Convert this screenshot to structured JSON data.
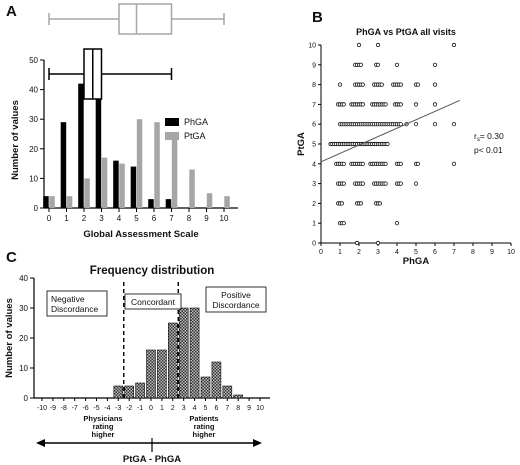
{
  "chart_data": [
    {
      "panel": "A",
      "type": "bar",
      "xlabel": "Global Assessment Scale",
      "ylabel": "Number of values",
      "categories": [
        "0",
        "1",
        "2",
        "3",
        "4",
        "5",
        "6",
        "7",
        "8",
        "9",
        "10"
      ],
      "ylim": [
        0,
        50
      ],
      "yticks": [
        0,
        10,
        20,
        30,
        40,
        50
      ],
      "legend": "right",
      "series": [
        {
          "name": "PhGA",
          "color": "#000000",
          "values": [
            4,
            29,
            42,
            43,
            16,
            14,
            3,
            3,
            0,
            0,
            0
          ]
        },
        {
          "name": "PtGA",
          "color": "#a6a6a6",
          "values": [
            4,
            4,
            10,
            17,
            15,
            30,
            29,
            23,
            13,
            5,
            4
          ]
        }
      ],
      "boxplots": [
        {
          "series": "PtGA",
          "color": "#a6a6a6",
          "min": 0,
          "q1": 4,
          "median": 5,
          "q3": 7,
          "max": 10
        },
        {
          "series": "PhGA",
          "color": "#000000",
          "min": 0,
          "q1": 2,
          "median": 2.5,
          "q3": 3,
          "max": 7
        }
      ]
    },
    {
      "panel": "B",
      "type": "scatter",
      "title": "PhGA vs PtGA all visits",
      "xlabel": "PhGA",
      "ylabel": "PtGA",
      "xlim": [
        0,
        10
      ],
      "ylim": [
        0,
        10
      ],
      "xticks": [
        0,
        1,
        2,
        3,
        4,
        5,
        6,
        7,
        8,
        9,
        10
      ],
      "yticks": [
        0,
        1,
        2,
        3,
        4,
        5,
        6,
        7,
        8,
        9,
        10
      ],
      "regression": {
        "x": [
          0,
          7.3
        ],
        "y": [
          4.1,
          7.2
        ]
      },
      "stats": {
        "rs_label": "r",
        "rs_sub": "s",
        "rs_value": "= 0.30",
        "p": "p< 0.01"
      },
      "points": [
        [
          0.5,
          5
        ],
        [
          0.6,
          5
        ],
        [
          0.7,
          5
        ],
        [
          0.8,
          5
        ],
        [
          0.9,
          5
        ],
        [
          1.0,
          5
        ],
        [
          1.1,
          5
        ],
        [
          1.2,
          5
        ],
        [
          1.3,
          5
        ],
        [
          1.4,
          5
        ],
        [
          1.5,
          5
        ],
        [
          1.6,
          5
        ],
        [
          1.7,
          5
        ],
        [
          1.8,
          5
        ],
        [
          1.9,
          5
        ],
        [
          2.0,
          5
        ],
        [
          2.1,
          5
        ],
        [
          2.2,
          5
        ],
        [
          2.3,
          5
        ],
        [
          2.4,
          5
        ],
        [
          2.5,
          5
        ],
        [
          2.6,
          5
        ],
        [
          2.7,
          5
        ],
        [
          2.8,
          5
        ],
        [
          2.9,
          5
        ],
        [
          3.0,
          5
        ],
        [
          3.1,
          5
        ],
        [
          3.2,
          5
        ],
        [
          3.3,
          5
        ],
        [
          3.4,
          5
        ],
        [
          3.5,
          5
        ],
        [
          1.0,
          6
        ],
        [
          1.1,
          6
        ],
        [
          1.2,
          6
        ],
        [
          1.3,
          6
        ],
        [
          1.4,
          6
        ],
        [
          1.5,
          6
        ],
        [
          1.6,
          6
        ],
        [
          1.7,
          6
        ],
        [
          1.8,
          6
        ],
        [
          1.9,
          6
        ],
        [
          2.0,
          6
        ],
        [
          2.1,
          6
        ],
        [
          2.2,
          6
        ],
        [
          2.3,
          6
        ],
        [
          2.4,
          6
        ],
        [
          2.5,
          6
        ],
        [
          2.6,
          6
        ],
        [
          2.7,
          6
        ],
        [
          2.8,
          6
        ],
        [
          2.9,
          6
        ],
        [
          3.0,
          6
        ],
        [
          3.1,
          6
        ],
        [
          3.2,
          6
        ],
        [
          3.3,
          6
        ],
        [
          3.4,
          6
        ],
        [
          3.5,
          6
        ],
        [
          3.6,
          6
        ],
        [
          3.7,
          6
        ],
        [
          3.8,
          6
        ],
        [
          3.9,
          6
        ],
        [
          4.0,
          6
        ],
        [
          4.1,
          6
        ],
        [
          4.2,
          6
        ],
        [
          4.5,
          6
        ],
        [
          5.0,
          6
        ],
        [
          6.0,
          6
        ],
        [
          7.0,
          6
        ],
        [
          0.8,
          4
        ],
        [
          0.9,
          4
        ],
        [
          1.0,
          4
        ],
        [
          1.1,
          4
        ],
        [
          1.2,
          4
        ],
        [
          1.6,
          4
        ],
        [
          1.7,
          4
        ],
        [
          1.8,
          4
        ],
        [
          1.9,
          4
        ],
        [
          2.0,
          4
        ],
        [
          2.1,
          4
        ],
        [
          2.2,
          4
        ],
        [
          2.6,
          4
        ],
        [
          2.7,
          4
        ],
        [
          2.8,
          4
        ],
        [
          2.9,
          4
        ],
        [
          3.0,
          4
        ],
        [
          3.1,
          4
        ],
        [
          3.2,
          4
        ],
        [
          3.3,
          4
        ],
        [
          3.4,
          4
        ],
        [
          4.0,
          4
        ],
        [
          4.1,
          4
        ],
        [
          4.2,
          4
        ],
        [
          5.0,
          4
        ],
        [
          5.1,
          4
        ],
        [
          7.0,
          4
        ],
        [
          0.9,
          7
        ],
        [
          1.0,
          7
        ],
        [
          1.1,
          7
        ],
        [
          1.2,
          7
        ],
        [
          1.6,
          7
        ],
        [
          1.7,
          7
        ],
        [
          1.8,
          7
        ],
        [
          1.9,
          7
        ],
        [
          2.0,
          7
        ],
        [
          2.1,
          7
        ],
        [
          2.2,
          7
        ],
        [
          2.7,
          7
        ],
        [
          2.8,
          7
        ],
        [
          2.9,
          7
        ],
        [
          3.0,
          7
        ],
        [
          3.1,
          7
        ],
        [
          3.2,
          7
        ],
        [
          3.3,
          7
        ],
        [
          3.4,
          7
        ],
        [
          3.9,
          7
        ],
        [
          4.0,
          7
        ],
        [
          4.1,
          7
        ],
        [
          4.2,
          7
        ],
        [
          5.0,
          7
        ],
        [
          6.0,
          7
        ],
        [
          0.9,
          3
        ],
        [
          1.0,
          3
        ],
        [
          1.1,
          3
        ],
        [
          1.2,
          3
        ],
        [
          1.8,
          3
        ],
        [
          1.9,
          3
        ],
        [
          2.0,
          3
        ],
        [
          2.1,
          3
        ],
        [
          2.2,
          3
        ],
        [
          2.8,
          3
        ],
        [
          2.9,
          3
        ],
        [
          3.0,
          3
        ],
        [
          3.1,
          3
        ],
        [
          3.2,
          3
        ],
        [
          3.3,
          3
        ],
        [
          3.4,
          3
        ],
        [
          4.0,
          3
        ],
        [
          4.1,
          3
        ],
        [
          4.2,
          3
        ],
        [
          5.0,
          3
        ],
        [
          1.0,
          8
        ],
        [
          1.8,
          8
        ],
        [
          1.9,
          8
        ],
        [
          2.0,
          8
        ],
        [
          2.1,
          8
        ],
        [
          2.2,
          8
        ],
        [
          2.8,
          8
        ],
        [
          2.9,
          8
        ],
        [
          3.0,
          8
        ],
        [
          3.1,
          8
        ],
        [
          3.2,
          8
        ],
        [
          3.8,
          8
        ],
        [
          3.9,
          8
        ],
        [
          4.0,
          8
        ],
        [
          4.1,
          8
        ],
        [
          4.2,
          8
        ],
        [
          5.0,
          8
        ],
        [
          5.1,
          8
        ],
        [
          6.0,
          8
        ],
        [
          0.9,
          2
        ],
        [
          1.0,
          2
        ],
        [
          1.1,
          2
        ],
        [
          1.9,
          2
        ],
        [
          2.0,
          2
        ],
        [
          2.1,
          2
        ],
        [
          2.9,
          2
        ],
        [
          3.0,
          2
        ],
        [
          3.1,
          2
        ],
        [
          1.8,
          9
        ],
        [
          1.9,
          9
        ],
        [
          2.0,
          9
        ],
        [
          2.1,
          9
        ],
        [
          2.9,
          9
        ],
        [
          3.0,
          9
        ],
        [
          4.0,
          9
        ],
        [
          6.0,
          9
        ],
        [
          1.0,
          1
        ],
        [
          1.1,
          1
        ],
        [
          1.2,
          1
        ],
        [
          4.0,
          1
        ],
        [
          2.0,
          10
        ],
        [
          3.0,
          10
        ],
        [
          7.0,
          10
        ],
        [
          1.9,
          0
        ],
        [
          3.0,
          0
        ]
      ]
    },
    {
      "panel": "C",
      "type": "bar",
      "title": "Frequency distribution",
      "xlabel": "PtGA - PhGA",
      "ylabel": "Number of values",
      "categories": [
        "-10",
        "-9",
        "-8",
        "-7",
        "-6",
        "-5",
        "-4",
        "-3",
        "-2",
        "-1",
        "0",
        "1",
        "2",
        "3",
        "4",
        "5",
        "6",
        "7",
        "8",
        "9",
        "10"
      ],
      "values": [
        0,
        0,
        0,
        0,
        0,
        0,
        0,
        4,
        4,
        5,
        16,
        16,
        25,
        30,
        30,
        7,
        12,
        4,
        1,
        0,
        0
      ],
      "ylim": [
        0,
        40
      ],
      "yticks": [
        0,
        10,
        20,
        30,
        40
      ],
      "cutoffs": [
        -2.5,
        2.5
      ],
      "regions": [
        "Negative Discordance",
        "Concordant",
        "Positive Discordance"
      ],
      "left_note": "Physicians rating higher",
      "right_note": "Patients rating higher"
    }
  ],
  "panels": {
    "A": "A",
    "B": "B",
    "C": "C"
  }
}
